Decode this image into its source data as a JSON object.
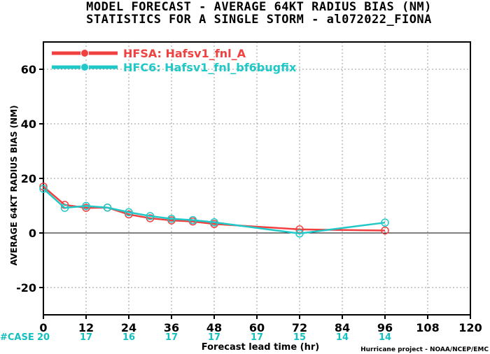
{
  "title_line1": "MODEL FORECAST - AVERAGE 64KT RADIUS BIAS (NM)",
  "title_line2": "STATISTICS FOR A SINGLE STORM - al072022_FIONA",
  "credit": "Hurricane project - NOAA/NCEP/EMC",
  "case_label": "#CASE",
  "chart_data": {
    "type": "line",
    "xlabel": "Forecast lead time (hr)",
    "ylabel": "AVERAGE 64KT RADIUS BIAS (NM)",
    "xlim": [
      0,
      120
    ],
    "ylim": [
      -30,
      70
    ],
    "xticks": [
      0,
      12,
      24,
      36,
      48,
      60,
      72,
      84,
      96,
      108,
      120
    ],
    "yticks": [
      -20,
      0,
      20,
      40,
      60
    ],
    "grid": "dotted",
    "legend_position": "top-left",
    "case_counts": [
      {
        "x": 0,
        "n": "20"
      },
      {
        "x": 12,
        "n": "17"
      },
      {
        "x": 24,
        "n": "16"
      },
      {
        "x": 36,
        "n": "17"
      },
      {
        "x": 48,
        "n": "17"
      },
      {
        "x": 60,
        "n": "17"
      },
      {
        "x": 72,
        "n": "15"
      },
      {
        "x": 84,
        "n": "14"
      },
      {
        "x": 96,
        "n": "14"
      }
    ],
    "series": [
      {
        "name": "HFSA: Hafsv1_fnl_A",
        "color": "#f04040",
        "x": [
          0,
          6,
          12,
          18,
          24,
          30,
          36,
          42,
          48,
          72,
          96
        ],
        "y": [
          17.0,
          10.3,
          9.2,
          9.3,
          6.8,
          5.4,
          4.6,
          4.2,
          3.3,
          1.3,
          0.9
        ]
      },
      {
        "name": "HFC6: Hafsv1_fnl_bf6bugfix",
        "color": "#20c8c8",
        "x": [
          0,
          6,
          12,
          18,
          24,
          30,
          36,
          42,
          48,
          72,
          96
        ],
        "y": [
          16.2,
          9.2,
          9.9,
          9.3,
          7.6,
          6.2,
          5.2,
          4.7,
          3.9,
          -0.2,
          3.8
        ]
      }
    ]
  }
}
